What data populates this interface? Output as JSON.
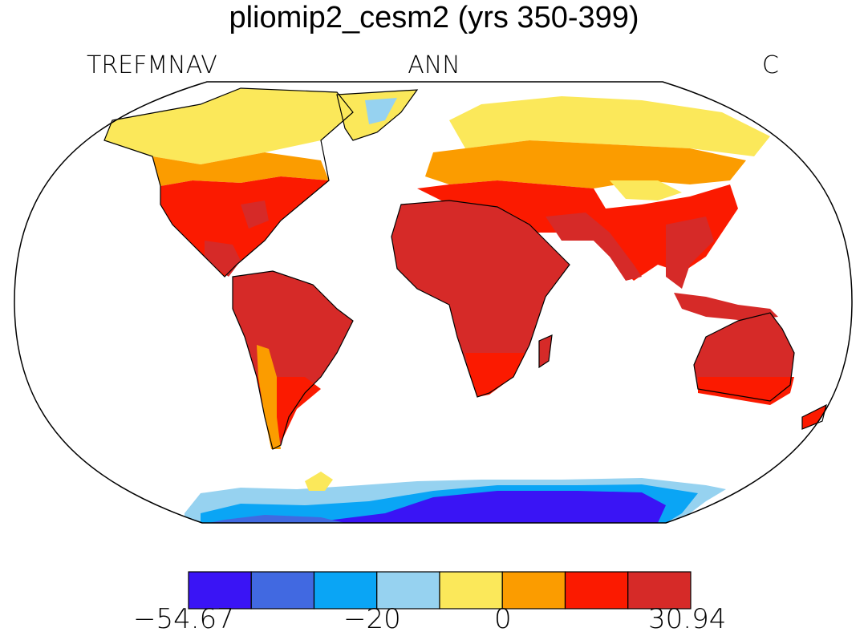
{
  "title": "pliomip2_cesm2 (yrs 350-399)",
  "subtitle_left": "TREFMNAV",
  "subtitle_center": "ANN",
  "subtitle_right": "C",
  "colorbar": {
    "colors": [
      "#3a14f5",
      "#4169e1",
      "#0aa5f5",
      "#96d2f0",
      "#fbe85a",
      "#fb9c00",
      "#fb1a00",
      "#d62a28"
    ],
    "tick_labels": [
      "−54.67",
      "−20",
      "0",
      "30.94"
    ],
    "min": -54.67,
    "max": 30.94
  },
  "map": {
    "projection": "robinson",
    "ocean": "#ffffff",
    "outline": "#000000"
  }
}
